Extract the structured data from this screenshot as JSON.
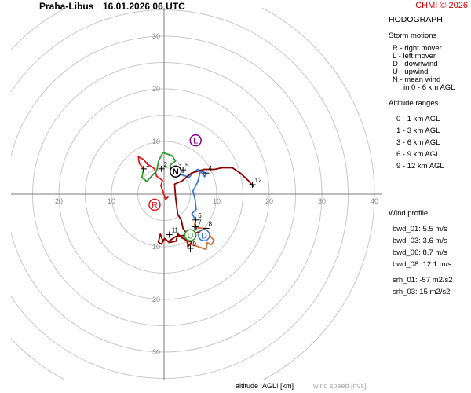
{
  "header": {
    "station": "Praha-Libus",
    "datetime": "16.01.2026 06 UTC",
    "credit": "CHMI © 2026"
  },
  "panel": {
    "title": "HODOGRAPH",
    "storm_motions_title": "Storm motions",
    "storm_motions": [
      {
        "label": "R - right mover",
        "color": "#e41a1c"
      },
      {
        "label": "L - left mover",
        "color": "#8b008b"
      },
      {
        "label": "D - downwind",
        "color": "#3a7bd5"
      },
      {
        "label": "U - upwind",
        "color": "#2e9b2e"
      },
      {
        "label": "N - mean wind",
        "color": "#000000"
      },
      {
        "label": "in 0 - 6 km AGL",
        "color": "#000000"
      }
    ],
    "altitude_title": "Altitude ranges",
    "altitude_ranges": [
      {
        "label": "0 - 1 km AGL",
        "color": "#e41a1c"
      },
      {
        "label": "1 - 3 km AGL",
        "color": "#2e9b2e"
      },
      {
        "label": "3 - 6 km AGL",
        "color": "#3a7bd5"
      },
      {
        "label": "6 - 9 km AGL",
        "color": "#d2733a"
      },
      {
        "label": "9 - 12 km AGL",
        "color": "#8b0000"
      }
    ],
    "wind_profile_title": "Wind profile",
    "wind_profile": [
      "bwd_01: 5.5 m/s",
      "bwd_03: 3.6 m/s",
      "bwd_06: 8.7 m/s",
      "bwd_08: 12.1 m/s"
    ],
    "srh": [
      "srh_01: -57 m2/s2",
      "srh_03: 15 m2/s2"
    ]
  },
  "footer": {
    "altitude_label": "altitude !AGL! [km]",
    "speed_label": "wind speed [m/s]"
  },
  "chart_data": {
    "type": "line",
    "rings": [
      5,
      10,
      15,
      20,
      25,
      30,
      35,
      40
    ],
    "ring_labels": [
      "10",
      "20",
      "30",
      "40"
    ],
    "x_tick_labels": [
      "20",
      "10",
      "10",
      "20",
      "30",
      "40"
    ],
    "y_tick_labels": [
      "30",
      "20",
      "10",
      "10",
      "20",
      "30"
    ],
    "xlim": [
      -29,
      40
    ],
    "ylim": [
      -32,
      35
    ],
    "segments": [
      {
        "range": "0 - 1 km AGL",
        "color": "#e41a1c",
        "points": [
          [
            0.8,
            -0.5
          ],
          [
            0.3,
            -1.0
          ],
          [
            -0.2,
            0.4
          ],
          [
            -0.6,
            1.6
          ],
          [
            -0.3,
            2.6
          ],
          [
            -1.4,
            3.4
          ],
          [
            -1.8,
            4.8
          ],
          [
            -3.2,
            5.7
          ],
          [
            -3.9,
            6.6
          ],
          [
            -4.9,
            7.1
          ],
          [
            -4.7,
            5.8
          ],
          [
            -3.9,
            4.8
          ]
        ]
      },
      {
        "range": "1 - 3 km AGL",
        "color": "#2e9b2e",
        "points": [
          [
            -3.9,
            4.8
          ],
          [
            -4.2,
            3.2
          ],
          [
            -3.3,
            2.4
          ],
          [
            -2.3,
            3.5
          ],
          [
            -1.4,
            4.4
          ],
          [
            -1.0,
            6.4
          ],
          [
            -0.2,
            7.9
          ],
          [
            1.5,
            7.3
          ],
          [
            2.2,
            6.3
          ],
          [
            1.1,
            5.5
          ],
          [
            1.7,
            4.4
          ],
          [
            2.6,
            4.9
          ]
        ]
      },
      {
        "range": "3 - 6 km AGL",
        "color": "#3a7bd5",
        "points": [
          [
            2.6,
            4.9
          ],
          [
            3.3,
            3.7
          ],
          [
            4.8,
            3.2
          ],
          [
            5.4,
            4.0
          ],
          [
            6.4,
            4.7
          ],
          [
            8.0,
            4.0
          ],
          [
            7.7,
            3.3
          ],
          [
            6.9,
            4.4
          ],
          [
            6.4,
            2.3
          ],
          [
            5.5,
            0.6
          ],
          [
            5.9,
            -1.0
          ],
          [
            6.1,
            -2.9
          ],
          [
            5.3,
            -3.7
          ],
          [
            6.0,
            -4.9
          ]
        ]
      },
      {
        "range": "6 - 9 km AGL",
        "color": "#d2733a",
        "points": [
          [
            6.0,
            -4.9
          ],
          [
            5.8,
            -5.8
          ],
          [
            6.4,
            -6.4
          ],
          [
            7.8,
            -6.5
          ],
          [
            6.2,
            -7.3
          ],
          [
            5.0,
            -7.5
          ],
          [
            3.6,
            -7.9
          ],
          [
            4.5,
            -9.4
          ],
          [
            6.0,
            -9.8
          ],
          [
            8.0,
            -10.5
          ],
          [
            8.2,
            -9.2
          ],
          [
            9.0,
            -9.6
          ],
          [
            9.5,
            -8.8
          ],
          [
            8.2,
            -7.2
          ],
          [
            7.1,
            -7.1
          ]
        ]
      },
      {
        "range": "9 - 12 km AGL",
        "color": "#8b0000",
        "points": [
          [
            7.1,
            -7.1
          ],
          [
            4.7,
            -7.7
          ],
          [
            2.3,
            -8.0
          ],
          [
            0.8,
            -9.0
          ],
          [
            0.1,
            -8.4
          ],
          [
            -0.5,
            -9.5
          ],
          [
            -1.1,
            -9.1
          ],
          [
            -0.7,
            -7.6
          ],
          [
            -0.3,
            -8.7
          ],
          [
            0.3,
            -8.6
          ],
          [
            1.0,
            -9.2
          ],
          [
            2.3,
            -8.9
          ],
          [
            2.6,
            -7.5
          ],
          [
            3.4,
            -8.3
          ],
          [
            4.4,
            -8.8
          ],
          [
            5.3,
            -9.1
          ],
          [
            4.5,
            -10.0
          ],
          [
            4.5,
            -7.7
          ],
          [
            3.6,
            -6.5
          ],
          [
            3.3,
            -5.0
          ],
          [
            2.6,
            -3.8
          ],
          [
            2.2,
            -0.6
          ],
          [
            2.0,
            1.9
          ],
          [
            3.4,
            2.5
          ],
          [
            5.2,
            4.0
          ],
          [
            7.6,
            4.7
          ],
          [
            9.6,
            4.7
          ],
          [
            11.0,
            5.0
          ],
          [
            13.0,
            5.0
          ],
          [
            14.5,
            4.0
          ],
          [
            16.0,
            2.6
          ],
          [
            17.0,
            1.4
          ]
        ]
      }
    ],
    "altitude_markers": [
      {
        "label": "1",
        "x": -3.9,
        "y": 4.8
      },
      {
        "label": "2",
        "x": -0.5,
        "y": 4.8
      },
      {
        "label": "3",
        "x": 2.2,
        "y": 4.6
      },
      {
        "label": "4",
        "x": 8.0,
        "y": 4.0
      },
      {
        "label": "5",
        "x": 3.6,
        "y": 4.6
      },
      {
        "label": "6",
        "x": 6.0,
        "y": -4.9
      },
      {
        "label": "7",
        "x": 6.0,
        "y": -6.2
      },
      {
        "label": "8",
        "x": 8.0,
        "y": -6.5
      },
      {
        "label": "9",
        "x": 5.0,
        "y": -10.3
      },
      {
        "label": "10",
        "x": 5.0,
        "y": -7.3
      },
      {
        "label": "11",
        "x": 1.0,
        "y": -7.7
      },
      {
        "label": "12",
        "x": 16.8,
        "y": 1.8
      }
    ],
    "storm_motions": [
      {
        "label": "R",
        "x": -1.8,
        "y": -2.0,
        "color": "#e41a1c"
      },
      {
        "label": "L",
        "x": 6.0,
        "y": 10.2,
        "color": "#8b008b"
      },
      {
        "label": "D",
        "x": 7.6,
        "y": -7.8,
        "color": "#3a7bd5"
      },
      {
        "label": "U",
        "x": 5.0,
        "y": -7.8,
        "color": "#2e9b2e"
      },
      {
        "label": "N",
        "x": 2.2,
        "y": 4.3,
        "color": "#000000"
      }
    ]
  }
}
